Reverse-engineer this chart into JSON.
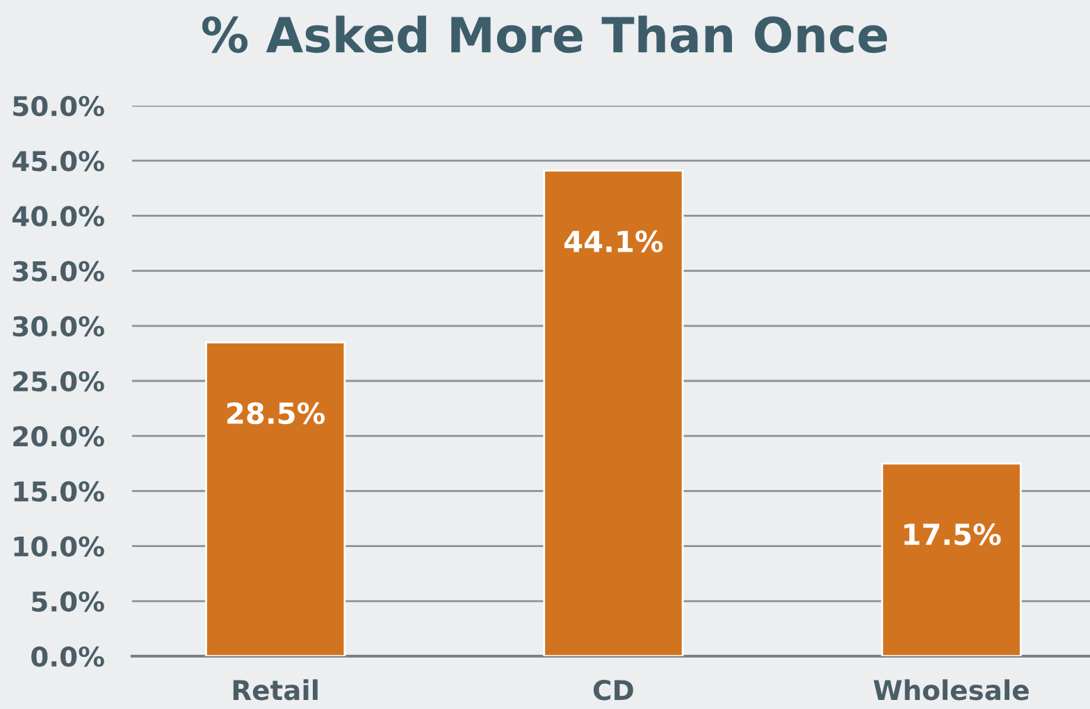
{
  "chart_data": {
    "type": "bar",
    "title": "% Asked More Than Once",
    "categories": [
      "Retail",
      "CD",
      "Wholesale"
    ],
    "values": [
      28.5,
      44.1,
      17.5
    ],
    "value_labels": [
      "28.5%",
      "44.1%",
      "17.5%"
    ],
    "color": "#d2741f",
    "ylim": [
      0,
      50
    ],
    "yticks": [
      {
        "value": 0,
        "label": "0.0%"
      },
      {
        "value": 5,
        "label": "5.0%"
      },
      {
        "value": 10,
        "label": "10.0%"
      },
      {
        "value": 15,
        "label": "15.0%"
      },
      {
        "value": 20,
        "label": "20.0%"
      },
      {
        "value": 25,
        "label": "25.0%"
      },
      {
        "value": 30,
        "label": "30.0%"
      },
      {
        "value": 35,
        "label": "35.0%"
      },
      {
        "value": 40,
        "label": "40.0%"
      },
      {
        "value": 45,
        "label": "45.0%"
      },
      {
        "value": 50,
        "label": "50.0%"
      }
    ],
    "grid": "y",
    "legend": false
  }
}
